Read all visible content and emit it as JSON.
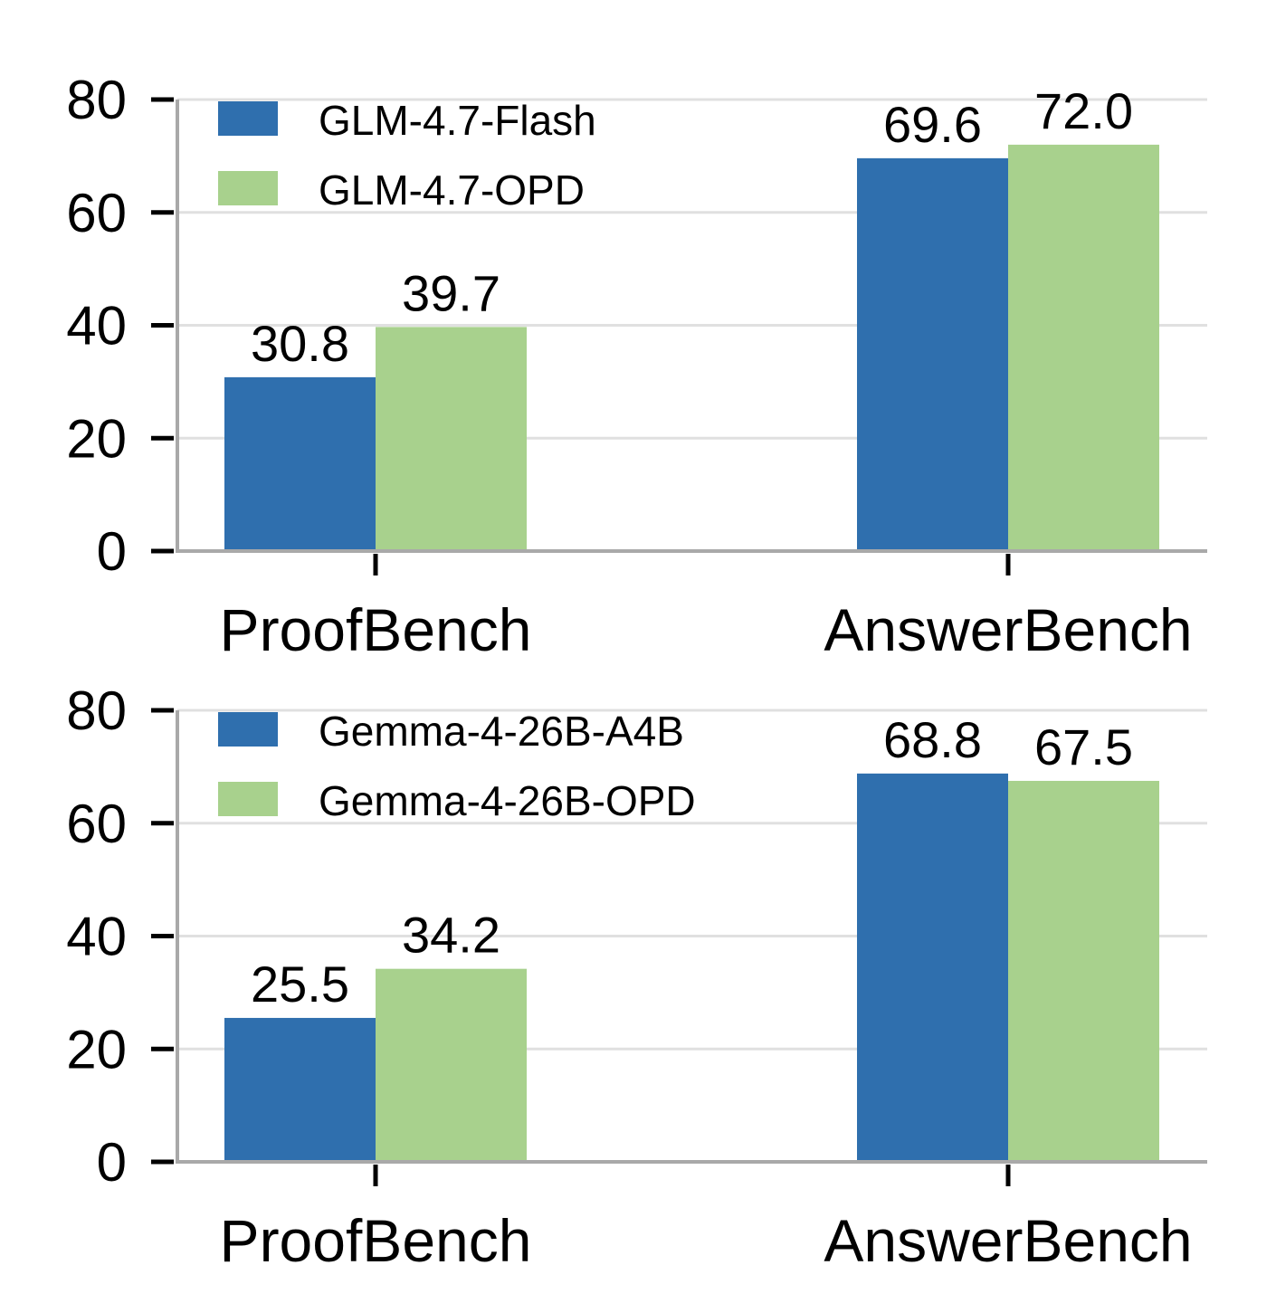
{
  "colors": {
    "series_a": "#2f6fae",
    "series_b": "#a8d18d",
    "grid": "#e0e0e0",
    "axis": "#a9a9a9",
    "tick": "#000000"
  },
  "chart_data": [
    {
      "type": "bar",
      "categories": [
        "ProofBench",
        "AnswerBench"
      ],
      "series": [
        {
          "name": "GLM-4.7-Flash",
          "values": [
            30.8,
            69.6
          ],
          "labels": [
            "30.8",
            "69.6"
          ]
        },
        {
          "name": "GLM-4.7-OPD",
          "values": [
            39.7,
            72.0
          ],
          "labels": [
            "39.7",
            "72.0"
          ]
        }
      ],
      "yticks": [
        "0",
        "20",
        "40",
        "60",
        "80"
      ],
      "ylim": [
        0,
        80
      ],
      "grid": true,
      "legend": "top-left",
      "xlabel": "",
      "ylabel": "",
      "title": ""
    },
    {
      "type": "bar",
      "categories": [
        "ProofBench",
        "AnswerBench"
      ],
      "series": [
        {
          "name": "Gemma-4-26B-A4B",
          "values": [
            25.5,
            68.8
          ],
          "labels": [
            "25.5",
            "68.8"
          ]
        },
        {
          "name": "Gemma-4-26B-OPD",
          "values": [
            34.2,
            67.5
          ],
          "labels": [
            "34.2",
            "67.5"
          ]
        }
      ],
      "yticks": [
        "0",
        "20",
        "40",
        "60",
        "80"
      ],
      "ylim": [
        0,
        80
      ],
      "grid": true,
      "legend": "top-left",
      "xlabel": "",
      "ylabel": "",
      "title": ""
    }
  ]
}
